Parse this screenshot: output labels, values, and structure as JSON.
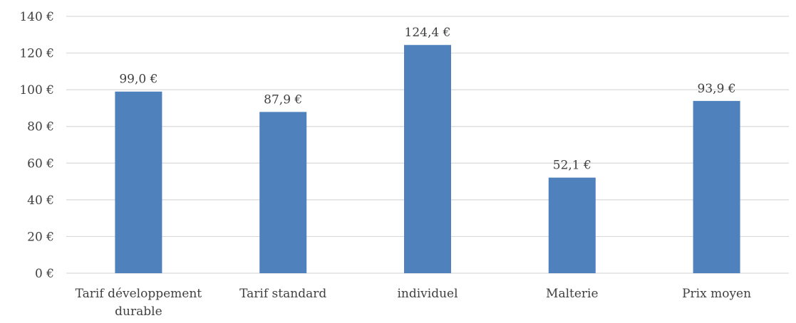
{
  "chart_data": {
    "type": "bar",
    "title": "",
    "xlabel": "",
    "ylabel": "",
    "categories": [
      [
        "Tarif développement",
        "durable"
      ],
      [
        "Tarif standard"
      ],
      [
        "individuel"
      ],
      [
        "Malterie"
      ],
      [
        "Prix moyen"
      ]
    ],
    "values": [
      99.0,
      87.9,
      124.4,
      52.1,
      93.9
    ],
    "data_labels": [
      "99,0 €",
      "87,9 €",
      "124,4 €",
      "52,1 €",
      "93,9 €"
    ],
    "ylim": [
      0,
      140
    ],
    "yticks": [
      0,
      20,
      40,
      60,
      80,
      100,
      120,
      140
    ],
    "ytick_labels": [
      "0 €",
      "20 €",
      "40 €",
      "60 €",
      "80 €",
      "100 €",
      "120 €",
      "140 €"
    ],
    "grid": true,
    "legend": "none",
    "colors": {
      "bar": "#4f81bd",
      "grid": "#d9d9d9",
      "text": "#404040"
    }
  }
}
